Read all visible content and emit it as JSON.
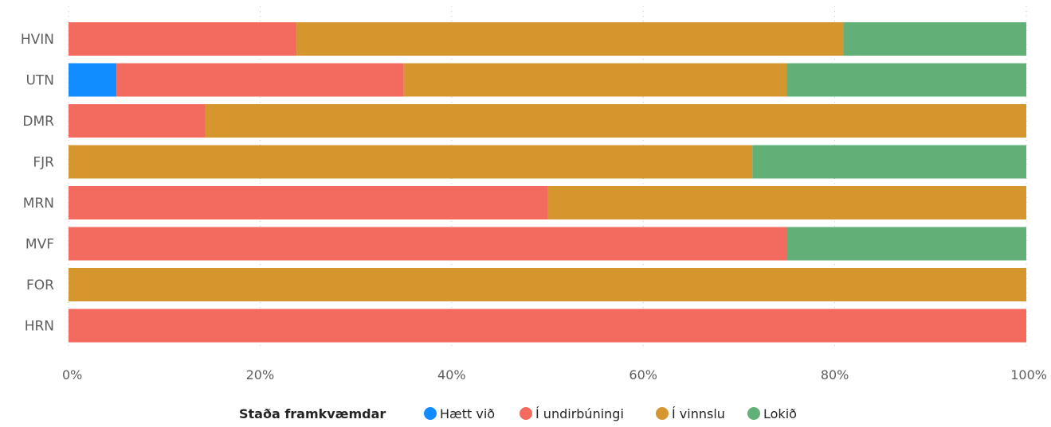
{
  "chart_data": {
    "type": "bar",
    "orientation": "horizontal",
    "stacked": "100%",
    "categories": [
      "HVIN",
      "UTN",
      "DMR",
      "FJR",
      "MRN",
      "MVF",
      "FOR",
      "HRN"
    ],
    "series": [
      {
        "name": "Hætt við",
        "color": "#118DFF",
        "values": [
          0,
          5,
          0,
          0,
          0,
          0,
          0,
          0
        ]
      },
      {
        "name": "Í undirbúningi",
        "color": "#F26B5E",
        "values": [
          23.8,
          30,
          14.3,
          0,
          50,
          75,
          0,
          100
        ]
      },
      {
        "name": "Í vinnslu",
        "color": "#D6962E",
        "values": [
          57.1,
          40,
          85.7,
          71.4,
          50,
          0,
          100,
          0
        ]
      },
      {
        "name": "Lokið",
        "color": "#62B078",
        "values": [
          19.1,
          25,
          0,
          28.6,
          0,
          25,
          0,
          0
        ]
      }
    ],
    "x_ticks": [
      "0%",
      "20%",
      "40%",
      "60%",
      "80%",
      "100%"
    ],
    "xlim": [
      0,
      100
    ],
    "grid": true,
    "legend_title": "Staða framkvæmdar",
    "legend_position": "bottom-center"
  }
}
